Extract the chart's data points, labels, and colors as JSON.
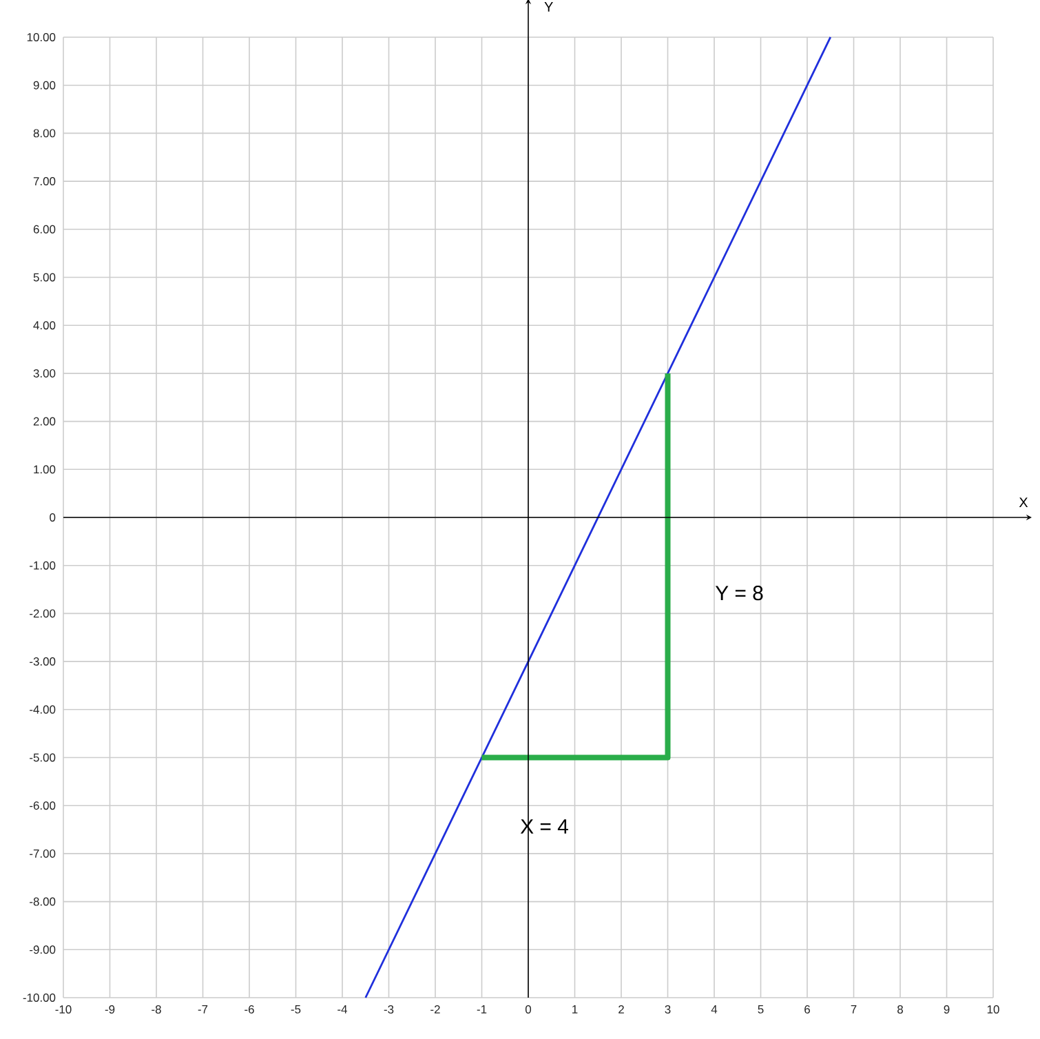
{
  "chart_data": {
    "type": "line",
    "xlabel": "X",
    "ylabel": "Y",
    "xlim": [
      -10,
      10
    ],
    "ylim": [
      -10,
      10
    ],
    "xticks": [
      -10,
      -9,
      -8,
      -7,
      -6,
      -5,
      -4,
      -3,
      -2,
      -1,
      0,
      1,
      2,
      3,
      4,
      5,
      6,
      7,
      8,
      9,
      10
    ],
    "yticks": [
      {
        "value": -10,
        "label": "-10.00"
      },
      {
        "value": -9,
        "label": "-9.00"
      },
      {
        "value": -8,
        "label": "-8.00"
      },
      {
        "value": -7,
        "label": "-7.00"
      },
      {
        "value": -6,
        "label": "-6.00"
      },
      {
        "value": -5,
        "label": "-5.00"
      },
      {
        "value": -4,
        "label": "-4.00"
      },
      {
        "value": -3,
        "label": "-3.00"
      },
      {
        "value": -2,
        "label": "-2.00"
      },
      {
        "value": -1,
        "label": "-1.00"
      },
      0,
      {
        "value": 1,
        "label": "1.00"
      },
      {
        "value": 2,
        "label": "2.00"
      },
      {
        "value": 3,
        "label": "3.00"
      },
      {
        "value": 4,
        "label": "4.00"
      },
      {
        "value": 5,
        "label": "5.00"
      },
      {
        "value": 6,
        "label": "6.00"
      },
      {
        "value": 7,
        "label": "7.00"
      },
      {
        "value": 8,
        "label": "8.00"
      },
      {
        "value": 9,
        "label": "9.00"
      },
      {
        "value": 10,
        "label": "10.00"
      }
    ],
    "grid": true,
    "series": [
      {
        "color": "#1f2fdc",
        "x": [
          -3.5,
          6.5
        ],
        "values": [
          -10,
          10
        ]
      },
      {
        "color": "#2aad4a",
        "x": [
          -1,
          3,
          3
        ],
        "values": [
          -5,
          -5,
          3
        ]
      }
    ],
    "annotations": [
      "Y = 8",
      "X = 4"
    ]
  }
}
